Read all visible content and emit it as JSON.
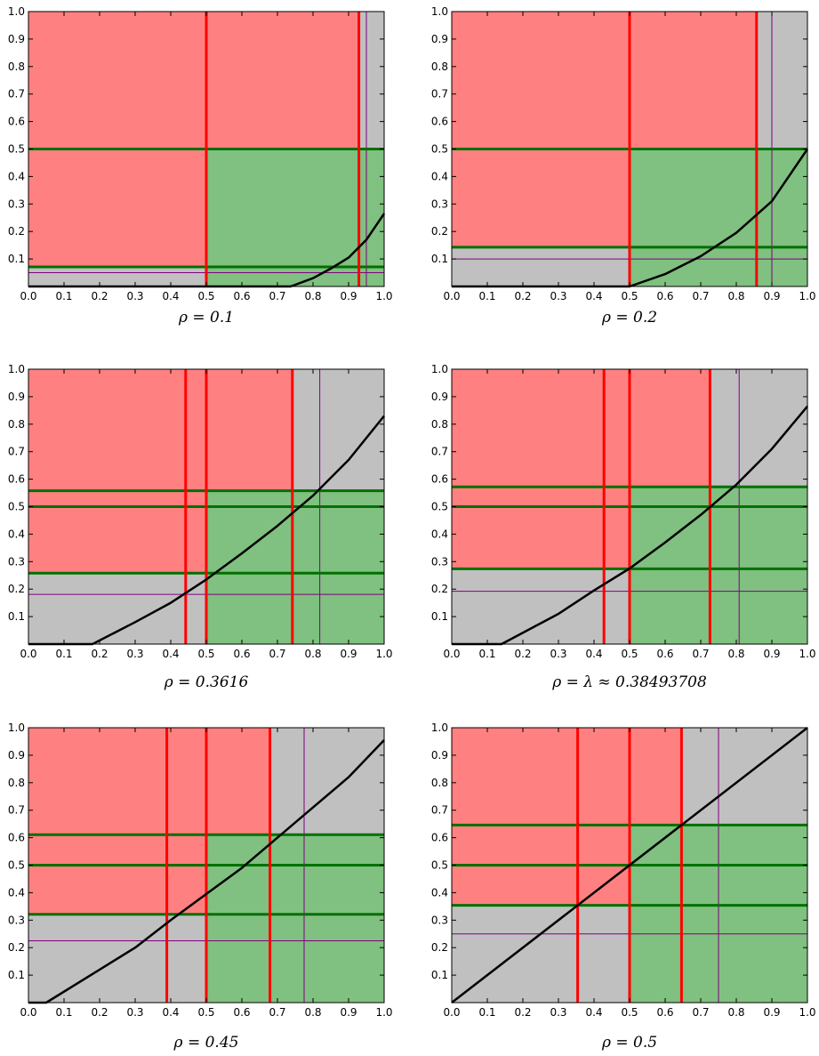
{
  "chart_data": [
    {
      "type": "area",
      "caption": "ρ = 0.1",
      "xlim": [
        0,
        1
      ],
      "ylim": [
        0,
        1
      ],
      "xticks": [
        "0.0",
        "0.1",
        "0.2",
        "0.3",
        "0.4",
        "0.5",
        "0.6",
        "0.7",
        "0.8",
        "0.9",
        "1.0"
      ],
      "yticks": [
        "0.1",
        "0.2",
        "0.3",
        "0.4",
        "0.5",
        "0.6",
        "0.7",
        "0.8",
        "0.9",
        "1.0"
      ],
      "regions": {
        "background": "#c0c0c0",
        "losing": "#ff8080",
        "winning": "#80c080"
      },
      "red_lines_x": [
        0.5,
        0.929
      ],
      "green_lines_y": [
        0.5,
        0.071
      ],
      "purple_x": 0.95,
      "purple_y": 0.05,
      "curve": [
        [
          0,
          0
        ],
        [
          0.737,
          0
        ],
        [
          0.8,
          0.03
        ],
        [
          0.85,
          0.065
        ],
        [
          0.9,
          0.105
        ],
        [
          0.95,
          0.17
        ],
        [
          1.0,
          0.265
        ]
      ]
    },
    {
      "type": "area",
      "caption": "ρ = 0.2",
      "xlim": [
        0,
        1
      ],
      "ylim": [
        0,
        1
      ],
      "xticks": [
        "0.0",
        "0.1",
        "0.2",
        "0.3",
        "0.4",
        "0.5",
        "0.6",
        "0.7",
        "0.8",
        "0.9",
        "1.0"
      ],
      "yticks": [
        "0.1",
        "0.2",
        "0.3",
        "0.4",
        "0.5",
        "0.6",
        "0.7",
        "0.8",
        "0.9",
        "1.0"
      ],
      "regions": {
        "background": "#c0c0c0",
        "losing": "#ff8080",
        "winning": "#80c080"
      },
      "red_lines_x": [
        0.5,
        0.857
      ],
      "green_lines_y": [
        0.5,
        0.143
      ],
      "purple_x": 0.9,
      "purple_y": 0.1,
      "curve": [
        [
          0,
          0
        ],
        [
          0.5,
          0
        ],
        [
          0.6,
          0.045
        ],
        [
          0.7,
          0.11
        ],
        [
          0.8,
          0.195
        ],
        [
          0.9,
          0.31
        ],
        [
          1.0,
          0.5
        ]
      ]
    },
    {
      "type": "area",
      "caption": "ρ = 0.3616",
      "xlim": [
        0,
        1
      ],
      "ylim": [
        0,
        1
      ],
      "xticks": [
        "0.0",
        "0.1",
        "0.2",
        "0.3",
        "0.4",
        "0.5",
        "0.6",
        "0.7",
        "0.8",
        "0.9",
        "1.0"
      ],
      "yticks": [
        "0.1",
        "0.2",
        "0.3",
        "0.4",
        "0.5",
        "0.6",
        "0.7",
        "0.8",
        "0.9",
        "1.0"
      ],
      "regions": {
        "background": "#c0c0c0",
        "losing": "#ff8080",
        "winning": "#80c080"
      },
      "red_lines_x": [
        0.442,
        0.5,
        0.742
      ],
      "green_lines_y": [
        0.558,
        0.5,
        0.258
      ],
      "purple_x": 0.819,
      "purple_y": 0.181,
      "curve": [
        [
          0,
          0
        ],
        [
          0.18,
          0
        ],
        [
          0.3,
          0.08
        ],
        [
          0.4,
          0.15
        ],
        [
          0.5,
          0.235
        ],
        [
          0.6,
          0.33
        ],
        [
          0.7,
          0.43
        ],
        [
          0.8,
          0.54
        ],
        [
          0.9,
          0.67
        ],
        [
          1.0,
          0.83
        ]
      ]
    },
    {
      "type": "area",
      "caption": "ρ = λ ≈ 0.38493708",
      "xlim": [
        0,
        1
      ],
      "ylim": [
        0,
        1
      ],
      "xticks": [
        "0.0",
        "0.1",
        "0.2",
        "0.3",
        "0.4",
        "0.5",
        "0.6",
        "0.7",
        "0.8",
        "0.9",
        "1.0"
      ],
      "yticks": [
        "0.1",
        "0.2",
        "0.3",
        "0.4",
        "0.5",
        "0.6",
        "0.7",
        "0.8",
        "0.9",
        "1.0"
      ],
      "regions": {
        "background": "#c0c0c0",
        "losing": "#ff8080",
        "winning": "#80c080"
      },
      "red_lines_x": [
        0.428,
        0.5,
        0.726
      ],
      "green_lines_y": [
        0.572,
        0.5,
        0.274
      ],
      "purple_x": 0.808,
      "purple_y": 0.192,
      "curve": [
        [
          0,
          0
        ],
        [
          0.14,
          0
        ],
        [
          0.3,
          0.11
        ],
        [
          0.4,
          0.195
        ],
        [
          0.5,
          0.275
        ],
        [
          0.6,
          0.37
        ],
        [
          0.7,
          0.47
        ],
        [
          0.8,
          0.58
        ],
        [
          0.9,
          0.71
        ],
        [
          1.0,
          0.865
        ]
      ]
    },
    {
      "type": "area",
      "caption": "ρ = 0.45",
      "xlim": [
        0,
        1
      ],
      "ylim": [
        0,
        1
      ],
      "xticks": [
        "0.0",
        "0.1",
        "0.2",
        "0.3",
        "0.4",
        "0.5",
        "0.6",
        "0.7",
        "0.8",
        "0.9",
        "1.0"
      ],
      "yticks": [
        "0.1",
        "0.2",
        "0.3",
        "0.4",
        "0.5",
        "0.6",
        "0.7",
        "0.8",
        "0.9",
        "1.0"
      ],
      "regions": {
        "background": "#c0c0c0",
        "losing": "#ff8080",
        "winning": "#80c080"
      },
      "red_lines_x": [
        0.389,
        0.5,
        0.679
      ],
      "green_lines_y": [
        0.611,
        0.5,
        0.321
      ],
      "purple_x": 0.775,
      "purple_y": 0.225,
      "curve": [
        [
          0,
          0
        ],
        [
          0.05,
          0
        ],
        [
          0.2,
          0.12
        ],
        [
          0.3,
          0.2
        ],
        [
          0.4,
          0.3
        ],
        [
          0.5,
          0.395
        ],
        [
          0.6,
          0.49
        ],
        [
          0.7,
          0.6
        ],
        [
          0.8,
          0.71
        ],
        [
          0.9,
          0.82
        ],
        [
          1.0,
          0.955
        ]
      ]
    },
    {
      "type": "area",
      "caption": "ρ = 0.5",
      "xlim": [
        0,
        1
      ],
      "ylim": [
        0,
        1
      ],
      "xticks": [
        "0.0",
        "0.1",
        "0.2",
        "0.3",
        "0.4",
        "0.5",
        "0.6",
        "0.7",
        "0.8",
        "0.9",
        "1.0"
      ],
      "yticks": [
        "0.1",
        "0.2",
        "0.3",
        "0.4",
        "0.5",
        "0.6",
        "0.7",
        "0.8",
        "0.9",
        "1.0"
      ],
      "regions": {
        "background": "#c0c0c0",
        "losing": "#ff8080",
        "winning": "#80c080"
      },
      "red_lines_x": [
        0.354,
        0.5,
        0.646
      ],
      "green_lines_y": [
        0.646,
        0.5,
        0.354
      ],
      "purple_x": 0.75,
      "purple_y": 0.25,
      "curve": [
        [
          0,
          0
        ],
        [
          1,
          1
        ]
      ]
    }
  ]
}
